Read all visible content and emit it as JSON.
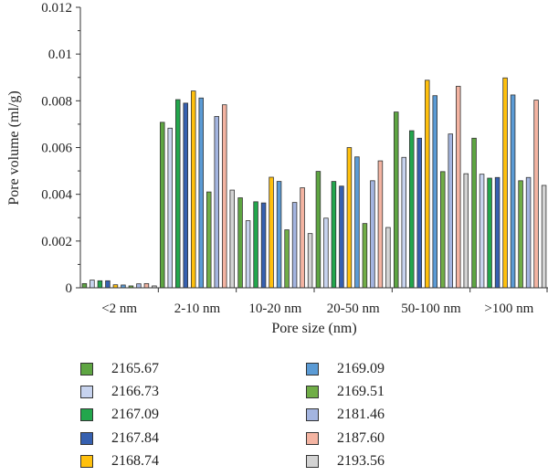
{
  "chart_data": {
    "type": "bar",
    "xlabel": "Pore size (nm)",
    "ylabel": "Pore volume (ml/g)",
    "ylim": [
      0,
      0.012
    ],
    "yticks": [
      "0",
      "0.002",
      "0.004",
      "0.006",
      "0.008",
      "0.01",
      "0.012"
    ],
    "categories": [
      "<2 nm",
      "2-10 nm",
      "10-20 nm",
      "20-50 nm",
      "50-100 nm",
      ">100 nm"
    ],
    "grid": false,
    "legend_position": "bottom, two columns",
    "series": [
      {
        "name": "2165.67",
        "color": "#5ea542",
        "values": [
          0.00018,
          0.00708,
          0.00385,
          0.00498,
          0.00752,
          0.0064
        ]
      },
      {
        "name": "2166.73",
        "color": "#c7d3ee",
        "values": [
          0.00033,
          0.00683,
          0.00287,
          0.00298,
          0.00558,
          0.00486
        ]
      },
      {
        "name": "2167.09",
        "color": "#22a64c",
        "values": [
          0.0003,
          0.00805,
          0.00368,
          0.00455,
          0.00672,
          0.00469
        ]
      },
      {
        "name": "2167.84",
        "color": "#3660b0",
        "values": [
          0.0003,
          0.0079,
          0.00363,
          0.00435,
          0.0064,
          0.00472
        ]
      },
      {
        "name": "2168.74",
        "color": "#ffc00d",
        "values": [
          0.00013,
          0.00842,
          0.00473,
          0.006,
          0.00888,
          0.00898
        ]
      },
      {
        "name": "2169.09",
        "color": "#5b9bd5",
        "values": [
          0.00012,
          0.00812,
          0.00455,
          0.0056,
          0.00822,
          0.00825
        ]
      },
      {
        "name": "2169.51",
        "color": "#70ad47",
        "values": [
          8e-05,
          0.0041,
          0.00248,
          0.00275,
          0.00497,
          0.00458
        ]
      },
      {
        "name": "2181.46",
        "color": "#a4b5e0",
        "values": [
          0.00017,
          0.00733,
          0.00365,
          0.00458,
          0.00658,
          0.00472
        ]
      },
      {
        "name": "2187.60",
        "color": "#f4b4a2",
        "values": [
          0.00018,
          0.00783,
          0.00428,
          0.00543,
          0.00862,
          0.00803
        ]
      },
      {
        "name": "2193.56",
        "color": "#d3d3d3",
        "values": [
          8e-05,
          0.00418,
          0.00232,
          0.00258,
          0.00488,
          0.00438
        ]
      }
    ]
  }
}
